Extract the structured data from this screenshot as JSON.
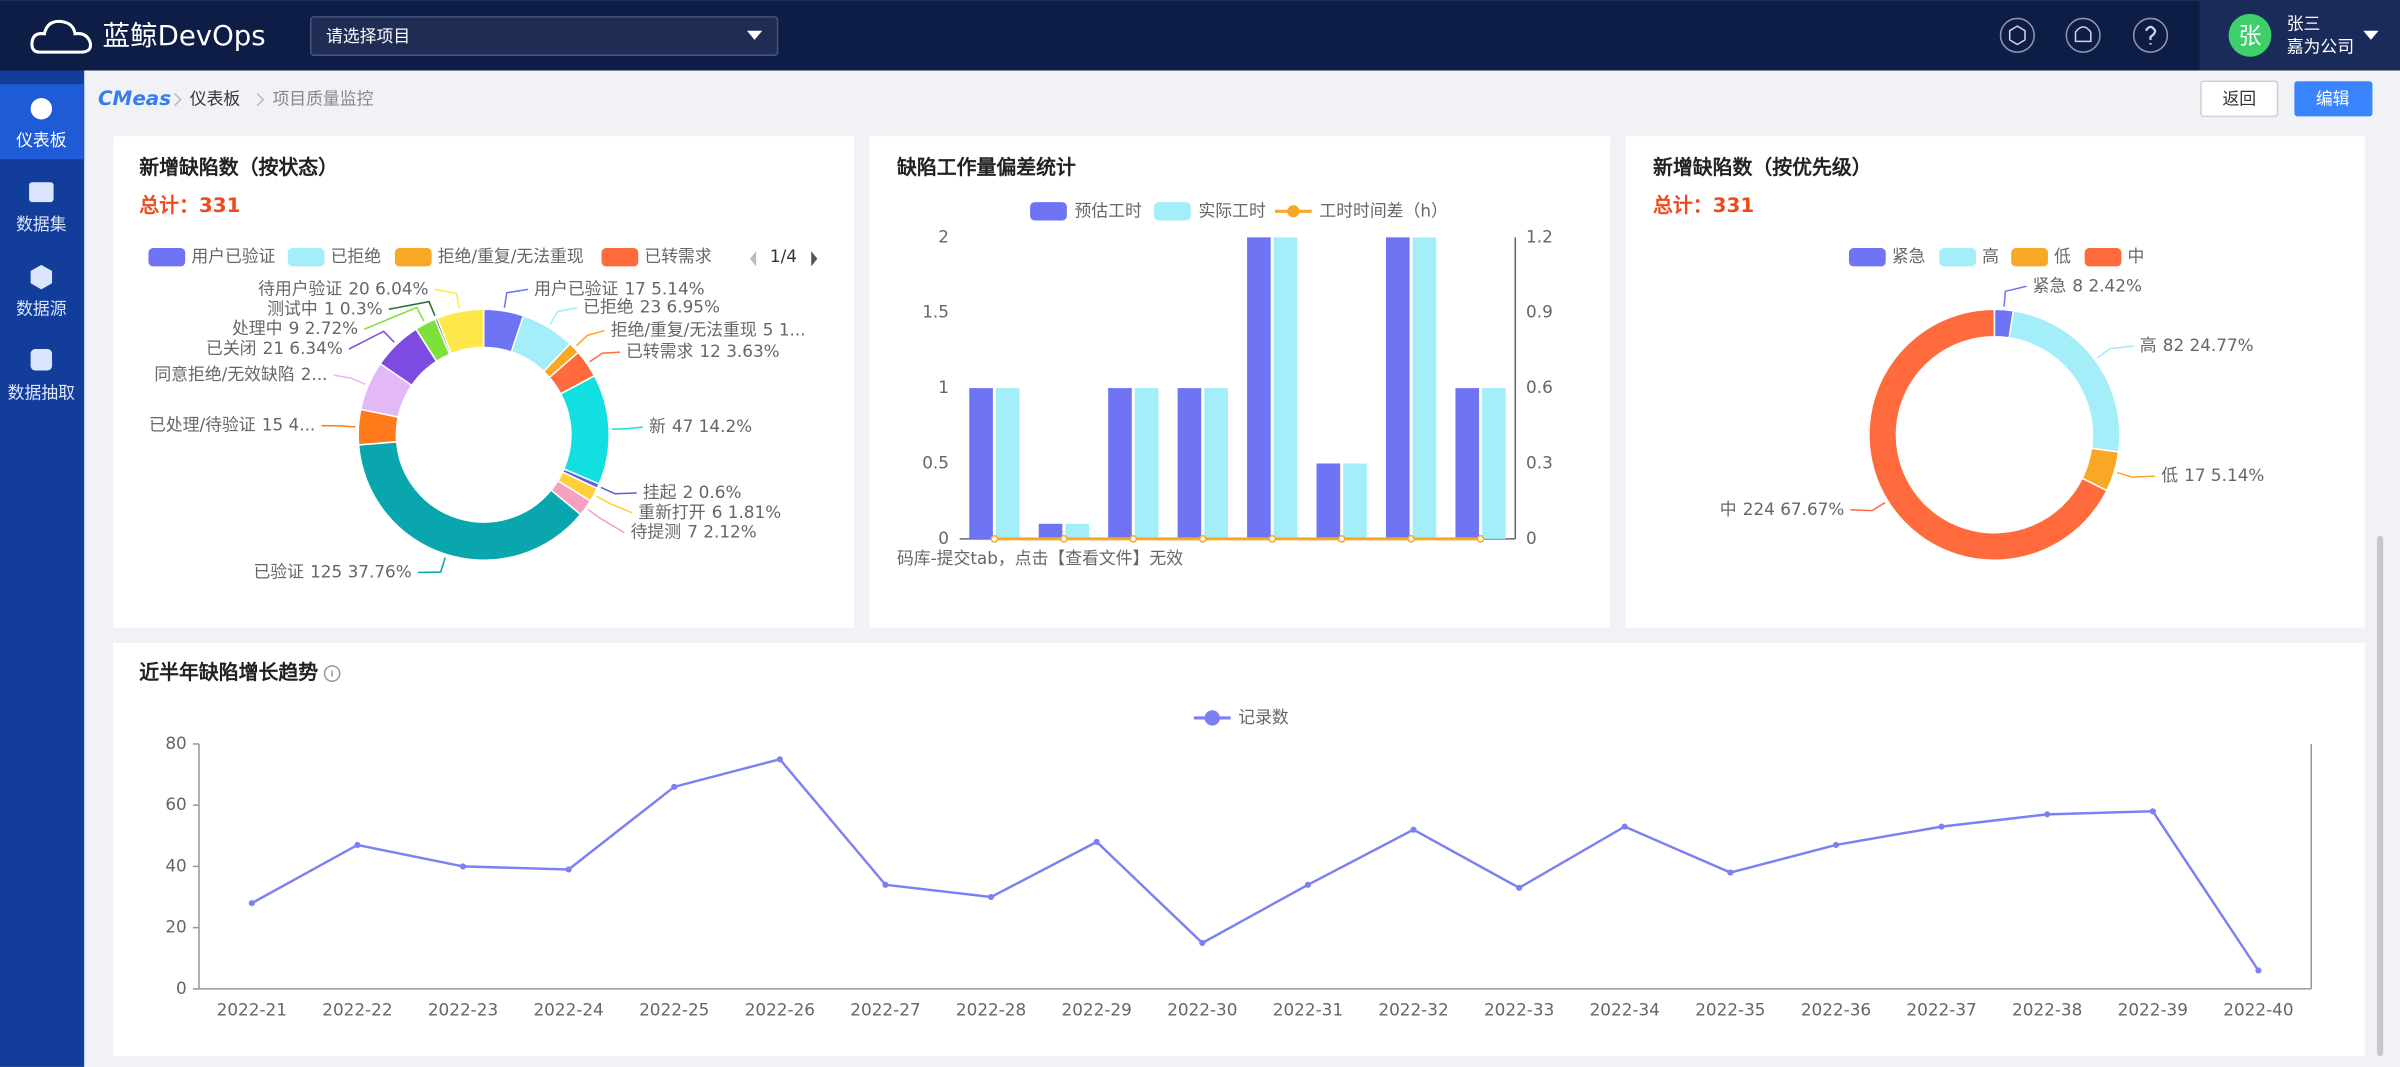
{
  "header": {
    "logo": "蓝鲸DevOps",
    "project_select": "请选择项目",
    "avatar": "张",
    "user_name": "张三",
    "company": "嘉为公司"
  },
  "sidebar": {
    "items": [
      "仪表板",
      "数据集",
      "数据源",
      "数据抽取"
    ]
  },
  "breadcrumb": [
    "CMeas",
    "仪表板",
    "项目质量监控"
  ],
  "buttons": [
    "返回",
    "编辑"
  ],
  "chart_data": [
    {
      "type": "pie",
      "title": "新增缺陷数（按状态）",
      "subtitle": "总计：331",
      "legend_page": "1/4",
      "categories": [
        "用户已验证",
        "已拒绝",
        "拒绝/重复/无法重现",
        "已转需求",
        "新",
        "挂起",
        "重新打开",
        "待提测",
        "已验证",
        "已处理/待验证",
        "同意拒绝/无效缺陷",
        "已关闭",
        "处理中",
        "测试中",
        "待用户验证"
      ],
      "values": [
        17,
        23,
        5,
        12,
        47,
        2,
        6,
        7,
        125,
        15,
        21,
        21,
        9,
        1,
        20
      ],
      "value_labels": [
        "17 5.14%",
        "23 6.95%",
        "5 1...",
        "12 3.63%",
        "47 14.2%",
        "2 0.6%",
        "6 1.81%",
        "7 2.12%",
        "125 37.76%",
        "15 4...",
        "2...",
        "21 6.34%",
        "9 2.72%",
        "1 0.3%",
        "20 6.04%"
      ],
      "colors": [
        "#6f74f5",
        "#a4eefa",
        "#f9a825",
        "#ff6b3d",
        "#12dfe0",
        "#5b5fe0",
        "#ffcf3a",
        "#f5a0c0",
        "#0aa6ae",
        "#ff7a1a",
        "#e3b8f7",
        "#7d4be0",
        "#7ee03a",
        "#2a6b3a",
        "#ffe84a"
      ]
    },
    {
      "type": "bar",
      "title": "缺陷工作量偏差统计",
      "note": "码库-提交tab，点击【查看文件】无效",
      "categories": [
        null,
        null,
        null,
        null,
        null,
        null,
        null,
        null
      ],
      "series": [
        {
          "name": "预估工时",
          "color": "#6f74f5",
          "values": [
            1,
            0.1,
            1,
            1,
            2,
            0.5,
            2,
            1
          ]
        },
        {
          "name": "实际工时",
          "color": "#a4eefa",
          "values": [
            1,
            0.1,
            1,
            1,
            2,
            0.5,
            2,
            1
          ]
        },
        {
          "name": "工时时间差（h）",
          "color": "#f9a825",
          "type": "line",
          "axis": "y2",
          "values": [
            0,
            0,
            0,
            0,
            0,
            0,
            0,
            0
          ]
        }
      ],
      "ylim": [
        0,
        2
      ],
      "yticks": [
        0,
        0.5,
        1,
        1.5,
        2
      ],
      "y2lim": [
        0,
        1.2
      ],
      "y2ticks": [
        0,
        0.3,
        0.6,
        0.9,
        1.2
      ]
    },
    {
      "type": "pie",
      "title": "新增缺陷数（按优先级）",
      "subtitle": "总计：331",
      "categories": [
        "紧急",
        "高",
        "低",
        "中"
      ],
      "values": [
        8,
        82,
        17,
        224
      ],
      "value_labels": [
        "8 2.42%",
        "82 24.77%",
        "17 5.14%",
        "224 67.67%"
      ],
      "colors": [
        "#6f74f5",
        "#a4eefa",
        "#f9a825",
        "#ff6b3d"
      ]
    },
    {
      "type": "line",
      "title": "近半年缺陷增长趋势",
      "categories": [
        "2022-21",
        "2022-22",
        "2022-23",
        "2022-24",
        "2022-25",
        "2022-26",
        "2022-27",
        "2022-28",
        "2022-29",
        "2022-30",
        "2022-31",
        "2022-32",
        "2022-33",
        "2022-34",
        "2022-35",
        "2022-36",
        "2022-37",
        "2022-38",
        "2022-39",
        "2022-40"
      ],
      "series": [
        {
          "name": "记录数",
          "color": "#7b80f2",
          "values": [
            28,
            47,
            40,
            39,
            66,
            75,
            34,
            30,
            48,
            15,
            34,
            52,
            33,
            53,
            38,
            47,
            53,
            57,
            58,
            6
          ]
        }
      ],
      "ylim": [
        0,
        80
      ],
      "yticks": [
        0,
        20,
        40,
        60,
        80
      ],
      "grid": false
    }
  ]
}
